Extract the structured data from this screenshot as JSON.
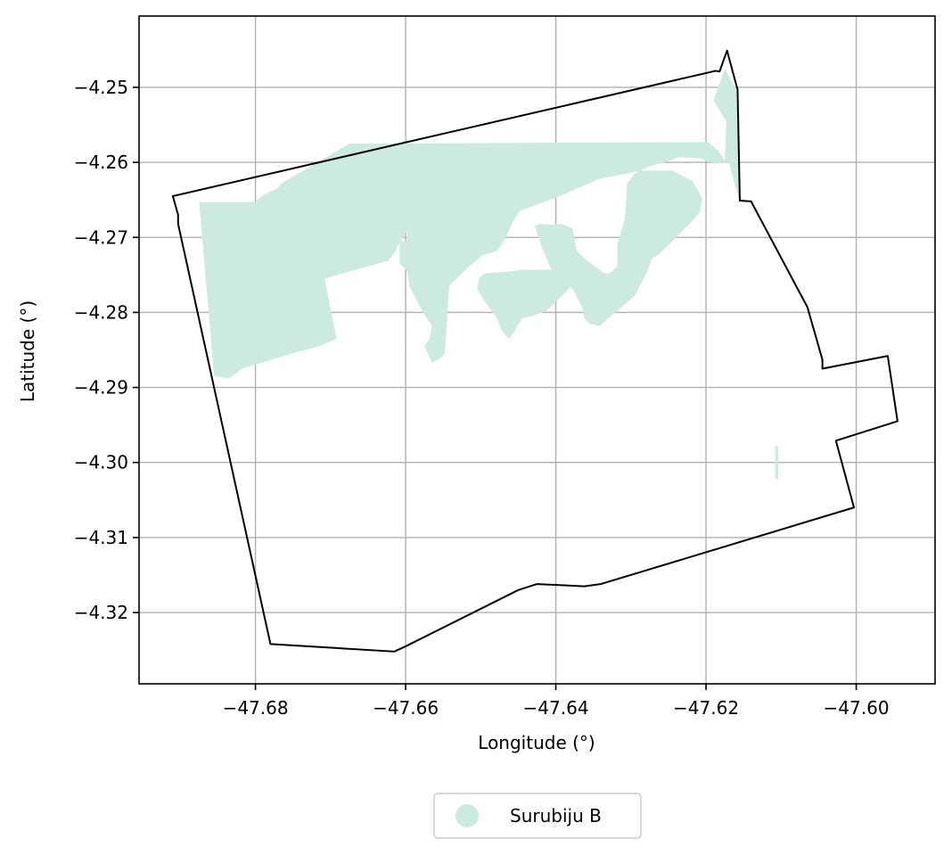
{
  "chart_data": {
    "type": "map",
    "xlabel": "Longitude (°)",
    "ylabel": "Latitude (°)",
    "xlim": [
      -47.6955,
      -47.5895
    ],
    "ylim": [
      -4.3295,
      -4.2405
    ],
    "xticks": [
      -47.68,
      -47.66,
      -47.64,
      -47.62,
      -47.6
    ],
    "xtick_labels": [
      "−47.68",
      "−47.66",
      "−47.64",
      "−47.62",
      "−47.60"
    ],
    "yticks": [
      -4.25,
      -4.26,
      -4.27,
      -4.28,
      -4.29,
      -4.3,
      -4.31,
      -4.32
    ],
    "ytick_labels": [
      "−4.25",
      "−4.26",
      "−4.27",
      "−4.28",
      "−4.29",
      "−4.30",
      "−4.31",
      "−4.32"
    ],
    "grid": true,
    "legend_position": "below",
    "legend": [
      {
        "label": "Surubiju B",
        "color": "#cdeade"
      }
    ],
    "colors": {
      "boundary": "#000000",
      "grid": "#b0b0b0",
      "fill": "#cdeade"
    },
    "boundary_polygon": [
      [
        -47.691,
        -4.2645
      ],
      [
        -47.6187,
        -4.2478
      ],
      [
        -47.6182,
        -4.2479
      ],
      [
        -47.6172,
        -4.2451
      ],
      [
        -47.6158,
        -4.2503
      ],
      [
        -47.6155,
        -4.2651
      ],
      [
        -47.614,
        -4.2652
      ],
      [
        -47.6065,
        -4.2793
      ],
      [
        -47.6045,
        -4.2863
      ],
      [
        -47.6045,
        -4.2875
      ],
      [
        -47.5958,
        -4.2858
      ],
      [
        -47.5945,
        -4.2945
      ],
      [
        -47.6027,
        -4.2971
      ],
      [
        -47.6003,
        -4.306
      ],
      [
        -47.634,
        -4.3162
      ],
      [
        -47.6362,
        -4.3165
      ],
      [
        -47.6425,
        -4.3162
      ],
      [
        -47.645,
        -4.317
      ],
      [
        -47.66,
        -4.3245
      ],
      [
        -47.6615,
        -4.3252
      ],
      [
        -47.678,
        -4.3242
      ],
      [
        -47.6903,
        -4.2682
      ],
      [
        -47.6903,
        -4.267
      ]
    ],
    "fill_polygons": [
      [
        [
          -47.6875,
          -4.2653
        ],
        [
          -47.68,
          -4.2653
        ],
        [
          -47.6792,
          -4.2645
        ],
        [
          -47.6772,
          -4.2635
        ],
        [
          -47.6765,
          -4.2628
        ],
        [
          -47.6675,
          -4.2575
        ],
        [
          -47.6197,
          -4.2573
        ],
        [
          -47.6183,
          -4.2585
        ],
        [
          -47.6175,
          -4.2598
        ],
        [
          -47.6173,
          -4.2545
        ],
        [
          -47.619,
          -4.2518
        ],
        [
          -47.6175,
          -4.2475
        ],
        [
          -47.616,
          -4.2503
        ],
        [
          -47.6158,
          -4.2545
        ],
        [
          -47.6155,
          -4.2651
        ],
        [
          -47.6163,
          -4.2625
        ],
        [
          -47.617,
          -4.26
        ],
        [
          -47.6188,
          -4.2602
        ],
        [
          -47.6205,
          -4.2595
        ],
        [
          -47.6235,
          -4.2593
        ],
        [
          -47.6255,
          -4.26
        ],
        [
          -47.6275,
          -4.2605
        ],
        [
          -47.6295,
          -4.2615
        ],
        [
          -47.6305,
          -4.2628
        ],
        [
          -47.6308,
          -4.2675
        ],
        [
          -47.6318,
          -4.2708
        ],
        [
          -47.6318,
          -4.2738
        ],
        [
          -47.6328,
          -4.2748
        ],
        [
          -47.6335,
          -4.2748
        ],
        [
          -47.6362,
          -4.2728
        ],
        [
          -47.6372,
          -4.2718
        ],
        [
          -47.6378,
          -4.2688
        ],
        [
          -47.6392,
          -4.2682
        ],
        [
          -47.6402,
          -4.2683
        ],
        [
          -47.6422,
          -4.2682
        ],
        [
          -47.6428,
          -4.2685
        ],
        [
          -47.6418,
          -4.2715
        ],
        [
          -47.6405,
          -4.2745
        ],
        [
          -47.6395,
          -4.2755
        ],
        [
          -47.6378,
          -4.2768
        ],
        [
          -47.6365,
          -4.2793
        ],
        [
          -47.6362,
          -4.2808
        ],
        [
          -47.6355,
          -4.2815
        ],
        [
          -47.6342,
          -4.2818
        ],
        [
          -47.6315,
          -4.2795
        ],
        [
          -47.6295,
          -4.2778
        ],
        [
          -47.6278,
          -4.2745
        ],
        [
          -47.6272,
          -4.2728
        ],
        [
          -47.6262,
          -4.2722
        ],
        [
          -47.6245,
          -4.2705
        ],
        [
          -47.6218,
          -4.2678
        ],
        [
          -47.6208,
          -4.2665
        ],
        [
          -47.6205,
          -4.2648
        ],
        [
          -47.6218,
          -4.2625
        ],
        [
          -47.6245,
          -4.2611
        ],
        [
          -47.6285,
          -4.2611
        ],
        [
          -47.6342,
          -4.2622
        ],
        [
          -47.6395,
          -4.2645
        ],
        [
          -47.6448,
          -4.2665
        ],
        [
          -47.6455,
          -4.2675
        ],
        [
          -47.6468,
          -4.2702
        ],
        [
          -47.6478,
          -4.2718
        ],
        [
          -47.6498,
          -4.2724
        ],
        [
          -47.6518,
          -4.2741
        ],
        [
          -47.6542,
          -4.2765
        ],
        [
          -47.6545,
          -4.2815
        ],
        [
          -47.6548,
          -4.2855
        ],
        [
          -47.6555,
          -4.2862
        ],
        [
          -47.6565,
          -4.2867
        ],
        [
          -47.6575,
          -4.2845
        ],
        [
          -47.6568,
          -4.2835
        ],
        [
          -47.6565,
          -4.2818
        ],
        [
          -47.6578,
          -4.2798
        ],
        [
          -47.6595,
          -4.2765
        ],
        [
          -47.6598,
          -4.2745
        ],
        [
          -47.6608,
          -4.2735
        ],
        [
          -47.6598,
          -4.2705
        ],
        [
          -47.6598,
          -4.2692
        ],
        [
          -47.6612,
          -4.2713
        ],
        [
          -47.6612,
          -4.2716
        ],
        [
          -47.6623,
          -4.2731
        ],
        [
          -47.6708,
          -4.2755
        ],
        [
          -47.6692,
          -4.2835
        ],
        [
          -47.6715,
          -4.2845
        ],
        [
          -47.6752,
          -4.2855
        ],
        [
          -47.6785,
          -4.2865
        ],
        [
          -47.6818,
          -4.2875
        ],
        [
          -47.6835,
          -4.2888
        ],
        [
          -47.6855,
          -4.2885
        ]
      ],
      [
        [
          -47.6485,
          -4.2678
        ],
        [
          -47.6468,
          -4.2655
        ],
        [
          -47.6445,
          -4.2648
        ],
        [
          -47.6438,
          -4.2625
        ],
        [
          -47.6448,
          -4.2625
        ],
        [
          -47.6452,
          -4.2628
        ],
        [
          -47.6468,
          -4.2638
        ],
        [
          -47.6482,
          -4.2648
        ],
        [
          -47.6492,
          -4.2658
        ],
        [
          -47.6505,
          -4.2645
        ],
        [
          -47.6498,
          -4.2638
        ],
        [
          -47.6485,
          -4.2678
        ]
      ],
      [
        [
          -47.6445,
          -4.2743
        ],
        [
          -47.6368,
          -4.2743
        ],
        [
          -47.6375,
          -4.2755
        ],
        [
          -47.6382,
          -4.2768
        ],
        [
          -47.6402,
          -4.2788
        ],
        [
          -47.6412,
          -4.2798
        ],
        [
          -47.6432,
          -4.2805
        ],
        [
          -47.6445,
          -4.2808
        ],
        [
          -47.6455,
          -4.2825
        ],
        [
          -47.6462,
          -4.2835
        ],
        [
          -47.6472,
          -4.2825
        ],
        [
          -47.6478,
          -4.2808
        ],
        [
          -47.6495,
          -4.2785
        ],
        [
          -47.6505,
          -4.2768
        ],
        [
          -47.6502,
          -4.2755
        ],
        [
          -47.6495,
          -4.2748
        ],
        [
          -47.6455,
          -4.2745
        ]
      ],
      [
        [
          -47.6608,
          -4.2705
        ],
        [
          -47.6585,
          -4.2705
        ],
        [
          -47.6585,
          -4.2735
        ],
        [
          -47.6608,
          -4.2735
        ]
      ],
      [
        [
          -47.6108,
          -4.2978
        ],
        [
          -47.6104,
          -4.2978
        ],
        [
          -47.6104,
          -4.3022
        ],
        [
          -47.6108,
          -4.3022
        ]
      ]
    ]
  }
}
